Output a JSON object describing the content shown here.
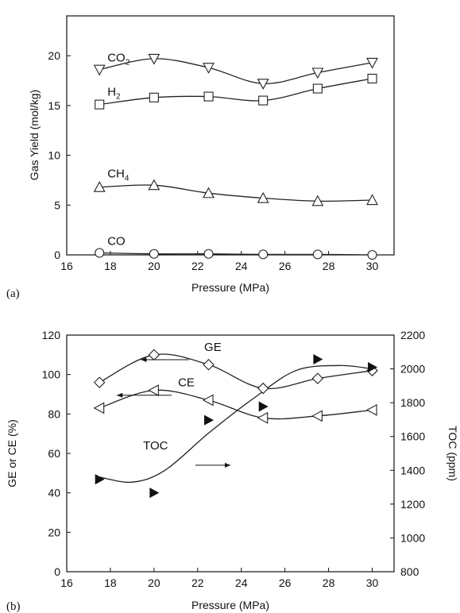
{
  "chart_data": [
    {
      "type": "line",
      "panel_label": "(a)",
      "xlabel": "Pressure (MPa)",
      "ylabel": "Gas Yield (mol/kg)",
      "xlim": [
        16,
        31
      ],
      "ylim": [
        0,
        24
      ],
      "xticks": [
        16,
        18,
        20,
        22,
        24,
        26,
        28,
        30
      ],
      "yticks": [
        0,
        5,
        10,
        15,
        20
      ],
      "x": [
        17.5,
        20,
        22.5,
        25,
        27.5,
        30
      ],
      "series": [
        {
          "name": "CO2",
          "label_main": "CO",
          "label_sub": "2",
          "marker": "triangle-down",
          "values": [
            18.6,
            19.7,
            18.8,
            17.2,
            18.3,
            19.3
          ]
        },
        {
          "name": "H2",
          "label_main": "H",
          "label_sub": "2",
          "marker": "square",
          "values": [
            15.1,
            15.8,
            15.9,
            15.5,
            16.7,
            17.7
          ]
        },
        {
          "name": "CH4",
          "label_main": "CH",
          "label_sub": "4",
          "marker": "triangle-up",
          "values": [
            6.8,
            7.0,
            6.2,
            5.7,
            5.4,
            5.5
          ]
        },
        {
          "name": "CO",
          "label_main": "CO",
          "label_sub": "",
          "marker": "circle",
          "values": [
            0.2,
            0.1,
            0.1,
            0.05,
            0.05,
            0.0
          ]
        }
      ]
    },
    {
      "type": "line",
      "panel_label": "(b)",
      "xlabel": "Pressure (MPa)",
      "ylabel": "GE or CE (%)",
      "y2label": "TOC (ppm)",
      "xlim": [
        16,
        31
      ],
      "ylim": [
        0,
        120
      ],
      "y2lim": [
        800,
        2200
      ],
      "xticks": [
        16,
        18,
        20,
        22,
        24,
        26,
        28,
        30
      ],
      "yticks": [
        0,
        20,
        40,
        60,
        80,
        100,
        120
      ],
      "y2ticks": [
        800,
        1000,
        1200,
        1400,
        1600,
        1800,
        2000,
        2200
      ],
      "x": [
        17.5,
        20,
        22.5,
        25,
        27.5,
        30
      ],
      "series": [
        {
          "name": "GE",
          "axis": "left",
          "marker": "diamond",
          "values": [
            96,
            110,
            105,
            93,
            98,
            102
          ]
        },
        {
          "name": "CE",
          "axis": "left",
          "marker": "triangle-left",
          "values": [
            83,
            92,
            87,
            78,
            79,
            82
          ]
        },
        {
          "name": "TOC",
          "axis": "right",
          "marker": "triangle-right-filled",
          "values": [
            1347,
            1267,
            1697,
            1777,
            2057,
            2010
          ]
        }
      ]
    }
  ]
}
